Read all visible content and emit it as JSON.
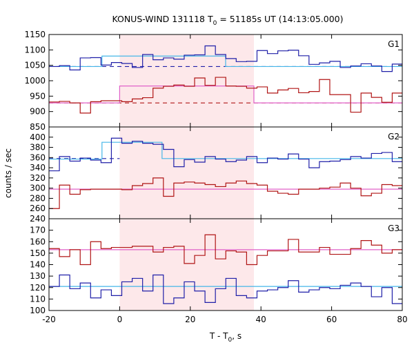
{
  "chart_data": {
    "type": "line",
    "title": {
      "prefix": "KONUS-WIND 131118 T",
      "subscript": "0",
      "suffix": " = 51185s UT (14:13:05.000)"
    },
    "xlabel": {
      "prefix": "T - T",
      "subscript": "0",
      "suffix": ", s"
    },
    "ylabel": "counts / sec",
    "xlim": [
      -20,
      80
    ],
    "xticks": [
      -20,
      0,
      20,
      40,
      60,
      80
    ],
    "xtick_labels": [
      "-20",
      "0",
      "20",
      "40",
      "60",
      "80"
    ],
    "shaded_interval": [
      0,
      38
    ],
    "colors": {
      "signal_high": "#1f1fa8",
      "signal_low": "#b01414",
      "fit_high": "#44b6e8",
      "fit_low": "#e060c8",
      "shade": "#fde8ea"
    },
    "panels": [
      {
        "name": "G1",
        "ylim": [
          850,
          1150
        ],
        "yticks": [
          850,
          900,
          950,
          1000,
          1050,
          1100,
          1150
        ],
        "ytick_labels": [
          "850",
          "900",
          "950",
          "1000",
          "1050",
          "1100",
          "1150"
        ],
        "step_width": 2.944,
        "series": [
          {
            "name": "",
            "color": "#1f1fa8",
            "x0": -20,
            "values": [
              1046,
              1049,
              1035,
              1074,
              1075,
              1051,
              1059,
              1056,
              1043,
              1085,
              1068,
              1074,
              1070,
              1083,
              1084,
              1113,
              1085,
              1072,
              1062,
              1063,
              1098,
              1088,
              1097,
              1099,
              1081,
              1053,
              1058,
              1063,
              1043,
              1048,
              1055,
              1048,
              1030,
              1054,
              1045,
              1042,
              1054,
              1050
            ]
          },
          {
            "name": "",
            "color": "#b01414",
            "x0": -20,
            "values": [
              931,
              933,
              928,
              895,
              932,
              935,
              935,
              932,
              941,
              945,
              976,
              982,
              986,
              982,
              1009,
              985,
              1011,
              983,
              982,
              976,
              980,
              960,
              970,
              975,
              961,
              965,
              1004,
              955,
              955,
              898,
              960,
              946,
              930,
              960,
              939,
              977,
              980,
              973
            ]
          }
        ],
        "fits": [
          {
            "color": "#44b6e8",
            "segments": [
              [
                -20,
                -5,
                1046
              ],
              [
                -5,
                30,
                1080
              ],
              [
                30,
                80,
                1046
              ]
            ]
          },
          {
            "color": "#e060c8",
            "segments": [
              [
                -20,
                0,
                928
              ],
              [
                0,
                38,
                983
              ],
              [
                38,
                80,
                928
              ]
            ]
          }
        ],
        "dashed": [
          {
            "color": "#1f1fa8",
            "segments": [
              [
                -20,
                80,
                1046
              ]
            ]
          },
          {
            "color": "#b01414",
            "segments": [
              [
                -20,
                80,
                928
              ]
            ]
          }
        ]
      },
      {
        "name": "G2",
        "ylim": [
          240,
          420
        ],
        "yticks": [
          240,
          260,
          280,
          300,
          320,
          340,
          360,
          380,
          400
        ],
        "ytick_labels": [
          "240",
          "260",
          "280",
          "300",
          "320",
          "340",
          "360",
          "380",
          "400"
        ],
        "step_width": 2.944,
        "series": [
          {
            "name": "",
            "color": "#1f1fa8",
            "x0": -20,
            "values": [
              334,
              362,
              353,
              359,
              355,
              350,
              398,
              388,
              392,
              388,
              386,
              376,
              342,
              356,
              351,
              362,
              357,
              352,
              355,
              362,
              350,
              359,
              357,
              367,
              357,
              340,
              352,
              353,
              356,
              362,
              359,
              368,
              370,
              352,
              357,
              365,
              341,
              370
            ]
          },
          {
            "name": "",
            "color": "#b01414",
            "x0": -20,
            "values": [
              260,
              306,
              288,
              297,
              298,
              298,
              298,
              297,
              305,
              309,
              320,
              284,
              310,
              312,
              310,
              307,
              303,
              310,
              314,
              309,
              306,
              294,
              290,
              288,
              298,
              298,
              300,
              302,
              310,
              300,
              285,
              290,
              307,
              305,
              292,
              308,
              296,
              301
            ]
          }
        ],
        "fits": [
          {
            "color": "#44b6e8",
            "segments": [
              [
                -20,
                -5,
                357
              ],
              [
                -5,
                12,
                390
              ],
              [
                12,
                80,
                358
              ]
            ]
          },
          {
            "color": "#e060c8",
            "segments": [
              [
                -20,
                80,
                298
              ]
            ]
          }
        ],
        "dashed": [
          {
            "color": "#1f1fa8",
            "segments": [
              [
                -20,
                0,
                358
              ]
            ]
          }
        ]
      },
      {
        "name": "G3",
        "ylim": [
          100,
          180
        ],
        "yticks": [
          100,
          110,
          120,
          130,
          140,
          150,
          160,
          170
        ],
        "ytick_labels": [
          "100",
          "110",
          "120",
          "130",
          "140",
          "150",
          "160",
          "170"
        ],
        "step_width": 2.944,
        "series": [
          {
            "name": "",
            "color": "#b01414",
            "x0": -20,
            "values": [
              154,
              147,
              153,
              140,
              160,
              154,
              155,
              155,
              156,
              156,
              151,
              155,
              156,
              141,
              148,
              166,
              145,
              152,
              151,
              140,
              148,
              152,
              152,
              162,
              151,
              151,
              155,
              149,
              149,
              154,
              161,
              157,
              150,
              153,
              162,
              137,
              162,
              150
            ]
          },
          {
            "name": "",
            "color": "#1f1fa8",
            "x0": -20,
            "values": [
              121,
              131,
              119,
              124,
              111,
              118,
              113,
              125,
              128,
              117,
              131,
              106,
              111,
              125,
              117,
              107,
              119,
              128,
              113,
              111,
              117,
              118,
              120,
              126,
              116,
              118,
              120,
              119,
              122,
              124,
              121,
              112,
              120,
              106,
              122,
              117,
              121,
              124
            ]
          }
        ],
        "fits": [
          {
            "color": "#44b6e8",
            "segments": [
              [
                -20,
                80,
                121
              ]
            ]
          },
          {
            "color": "#e060c8",
            "segments": [
              [
                -20,
                80,
                153
              ]
            ]
          }
        ],
        "dashed": []
      }
    ]
  }
}
